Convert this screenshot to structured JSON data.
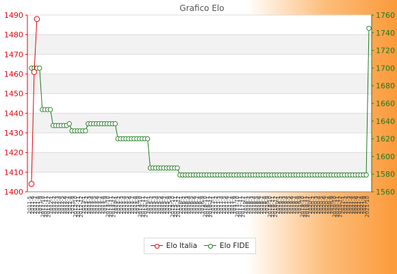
{
  "chart_data": {
    "type": "line",
    "title": "Grafico Elo",
    "left_axis": {
      "ylim": [
        1400,
        1490
      ],
      "ticks": [
        1400,
        1410,
        1420,
        1430,
        1440,
        1450,
        1460,
        1470,
        1480,
        1490
      ],
      "color": "#e8000d"
    },
    "right_axis": {
      "ylim": [
        1560,
        1760
      ],
      "ticks": [
        1560,
        1580,
        1600,
        1620,
        1640,
        1660,
        1680,
        1700,
        1720,
        1740,
        1760
      ],
      "color": "#1e7a1e"
    },
    "x_count": 126,
    "x_tick_labels": [
      "2011-5",
      "2011-6",
      "2011-7",
      "2011-8",
      "2011-9",
      "2011-10",
      "2011-11",
      "2011-12",
      "2012-1",
      "2012-2",
      "2012-3",
      "2012-4",
      "2012-5",
      "2012-6",
      "2012-7",
      "2012-8",
      "2012-9",
      "2012-10",
      "2012-11",
      "2012-12",
      "2013-1",
      "2013-2",
      "2013-3",
      "2013-4",
      "2013-5",
      "2013-6",
      "2013-7",
      "2013-8",
      "2013-9",
      "2013-10",
      "2013-11",
      "2013-12",
      "2014-1",
      "2014-2",
      "2014-3",
      "2014-4",
      "2014-5",
      "2014-6",
      "2014-7",
      "2014-8",
      "2014-9",
      "2014-10",
      "2014-11",
      "2014-12",
      "2015-1",
      "2015-2",
      "2015-3",
      "2015-4",
      "2015-5",
      "2015-6",
      "2015-7",
      "2015-8",
      "2015-9",
      "2015-10",
      "2015-11",
      "2015-12",
      "2016-1",
      "2016-2",
      "2016-3",
      "2016-4",
      "2016-5",
      "2016-6",
      "2016-7",
      "2016-8",
      "2016-9",
      "2016-10",
      "2016-11",
      "2016-12",
      "2017-1",
      "2017-2",
      "2017-3",
      "2017-4",
      "2017-5",
      "2017-6",
      "2017-7",
      "2017-8",
      "2017-9",
      "2017-10",
      "2017-11",
      "2017-12",
      "2018-1",
      "2018-2",
      "2018-3",
      "2018-4",
      "2018-5",
      "2018-6",
      "2018-7",
      "2018-8",
      "2018-9",
      "2018-10",
      "2018-11",
      "2018-12",
      "2019-1",
      "2019-2",
      "2019-3",
      "2019-4",
      "2019-5",
      "2019-6",
      "2019-7",
      "2019-8",
      "2019-9",
      "2019-10",
      "2019-11",
      "2019-12",
      "2020-1",
      "2020-2",
      "2020-3",
      "2020-4",
      "2020-5",
      "2020-6",
      "2020-7",
      "2020-8",
      "2020-9",
      "2020-10",
      "2020-11",
      "2020-12",
      "2021-1",
      "2021-2",
      "2021-3",
      "2021-4",
      "2021-5",
      "2021-6",
      "2021-7",
      "2021-8",
      "2021-9",
      "2021-10"
    ],
    "series": [
      {
        "name": "Elo Italia",
        "axis": "left",
        "color": "#e8000d",
        "x_index": [
          0,
          1,
          2
        ],
        "values": [
          1404,
          1461,
          1488
        ]
      },
      {
        "name": "Elo FIDE",
        "axis": "right",
        "color": "#1e7a1e",
        "runs": [
          {
            "count": 4,
            "value": 1700
          },
          {
            "count": 4,
            "value": 1653
          },
          {
            "count": 6,
            "value": 1635
          },
          {
            "count": 1,
            "value": 1637
          },
          {
            "count": 6,
            "value": 1629
          },
          {
            "count": 11,
            "value": 1637
          },
          {
            "count": 12,
            "value": 1620
          },
          {
            "count": 11,
            "value": 1587
          },
          {
            "count": 70,
            "value": 1579
          },
          {
            "count": 1,
            "value": 1745
          }
        ]
      }
    ],
    "grid": true,
    "legend_position": "bottom"
  }
}
